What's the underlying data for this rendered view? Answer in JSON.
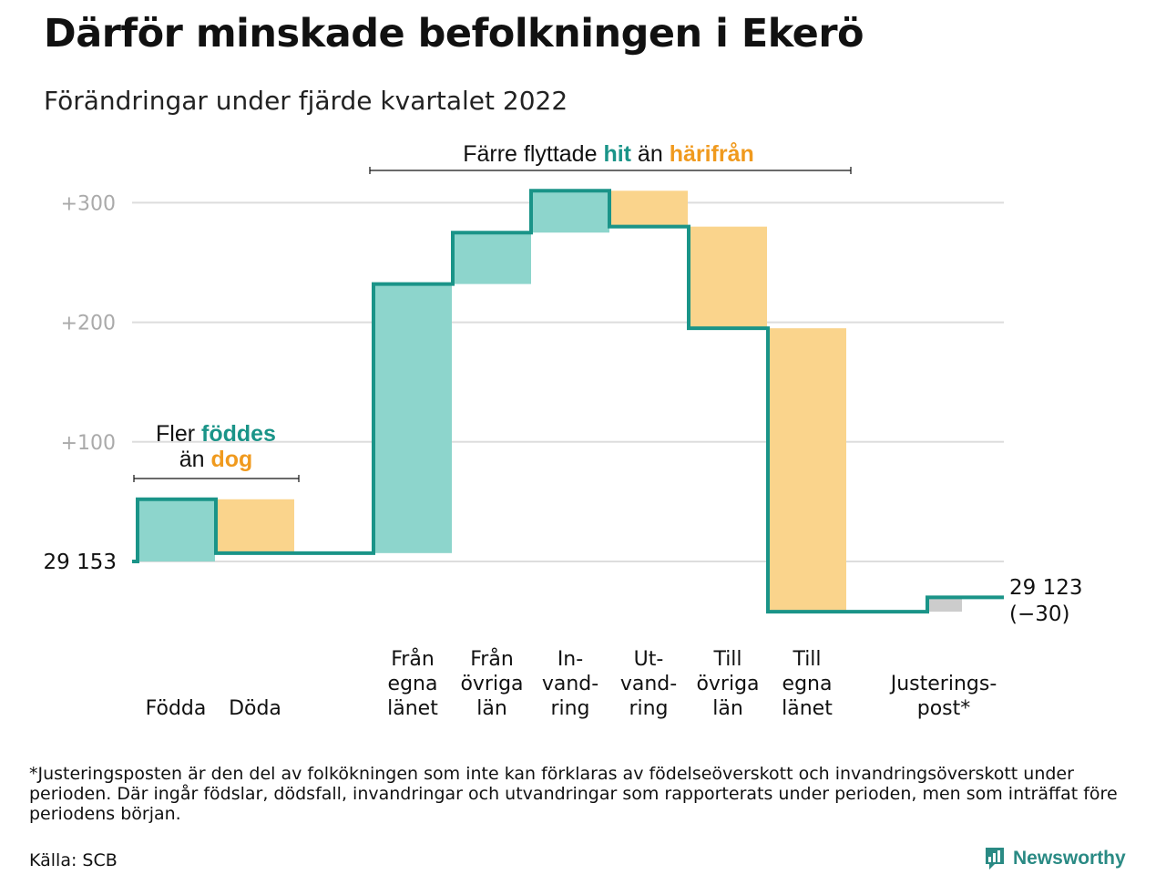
{
  "title": "Därför minskade befolkningen i Ekerö",
  "subtitle": "Förändringar under fjärde kvartalet 2022",
  "colors": {
    "inflow": "#8dd5cc",
    "outflow": "#fad48c",
    "adjustment": "#cccccc",
    "line": "#1a9488",
    "highlight_in": "#1a9488",
    "highlight_out": "#f09a1e",
    "grid": "#dddddd",
    "tick": "#aaaaaa"
  },
  "annotations": {
    "births": {
      "line1_a": "Fler ",
      "line1_b": "föddes",
      "line2_a": "än ",
      "line2_b": "dog"
    },
    "migration": {
      "a": "Färre flyttade ",
      "b": "hit",
      "c": " än ",
      "d": "härifrån"
    }
  },
  "start_label": "29 153",
  "end_label": [
    "29 123",
    "(−30)"
  ],
  "footnote": "*Justeringsposten är den del av folkökningen som inte kan förklaras av födelseöverskott och invandringsöverskott under perioden. Där ingår födslar, dödsfall, invandringar och utvandringar som rapporterats under perioden, men som inträffat före periodens början.",
  "source": "Källa: SCB",
  "brand": "Newsworthy",
  "chart_data": {
    "type": "waterfall",
    "start_value": 29153,
    "end_value": 29123,
    "net_change": -30,
    "ylim": [
      -45,
      320
    ],
    "yticks": [
      100,
      200,
      300
    ],
    "ytick_labels": [
      "+100",
      "+200",
      "+300"
    ],
    "grid": true,
    "categories": [
      {
        "label": [
          "Födda"
        ],
        "value": 52,
        "kind": "inflow"
      },
      {
        "label": [
          "Döda"
        ],
        "value": -45,
        "kind": "outflow"
      },
      {
        "label": [
          "Från",
          "egna",
          "länet"
        ],
        "value": 225,
        "kind": "inflow"
      },
      {
        "label": [
          "Från",
          "övriga",
          "län"
        ],
        "value": 43,
        "kind": "inflow"
      },
      {
        "label": [
          "In-",
          "vand-",
          "ring"
        ],
        "value": 35,
        "kind": "inflow"
      },
      {
        "label": [
          "Ut-",
          "vand-",
          "ring"
        ],
        "value": -30,
        "kind": "outflow"
      },
      {
        "label": [
          "Till",
          "övriga",
          "län"
        ],
        "value": -85,
        "kind": "outflow"
      },
      {
        "label": [
          "Till",
          "egna",
          "länet"
        ],
        "value": -237,
        "kind": "outflow"
      },
      {
        "label": [
          "Justerings-",
          "post*"
        ],
        "value": 12,
        "kind": "adjustment"
      }
    ]
  }
}
